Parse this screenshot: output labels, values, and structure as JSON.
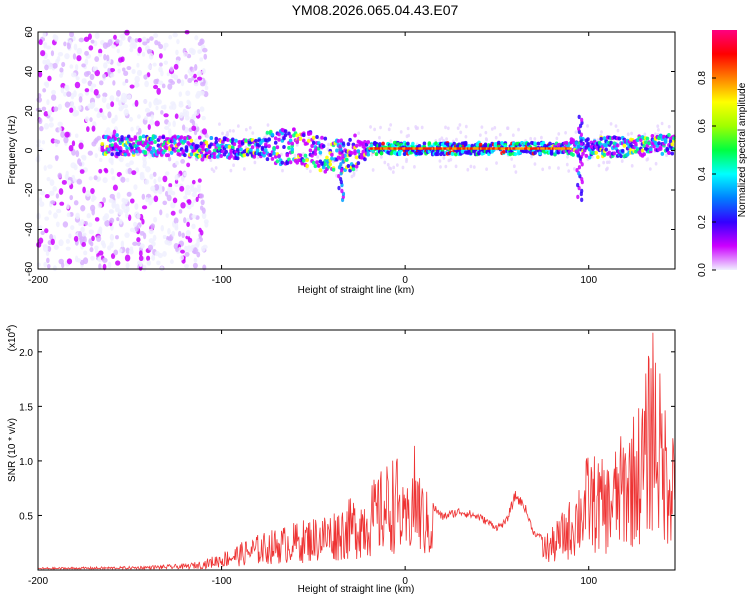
{
  "title": "YM08.2026.065.04.43.E07",
  "chart_data": [
    {
      "type": "heatmap",
      "name": "spectrogram",
      "xlabel": "Height of straight line (km)",
      "ylabel": "Frequency (Hz)",
      "xlim": [
        -200,
        147
      ],
      "ylim": [
        -60,
        60
      ],
      "xticks": [
        -200,
        -100,
        0,
        100
      ],
      "yticks": [
        -60,
        -40,
        -20,
        0,
        20,
        40,
        60
      ],
      "colorbar": {
        "label": "Normalized spectral amplitude",
        "range": [
          0,
          1
        ],
        "ticks": [
          0.0,
          0.2,
          0.4,
          0.6,
          0.8
        ],
        "colormap": [
          "#f0f0ff",
          "#cc00ff",
          "#3300ff",
          "#0080ff",
          "#00ffff",
          "#00ff40",
          "#a0ff00",
          "#ffff00",
          "#ff8000",
          "#ff0000",
          "#ff0080"
        ]
      },
      "ridge": {
        "description_points": [
          [
            -160,
            3
          ],
          [
            -120,
            2
          ],
          [
            -90,
            1
          ],
          [
            -70,
            1
          ],
          [
            -60,
            3
          ],
          [
            -50,
            0
          ],
          [
            -40,
            -3
          ],
          [
            -30,
            -2
          ],
          [
            -20,
            1
          ],
          [
            0,
            1
          ],
          [
            50,
            1
          ],
          [
            90,
            1
          ],
          [
            120,
            2
          ],
          [
            147,
            3
          ]
        ],
        "features": [
          {
            "x": 95,
            "f_range": [
              -25,
              18
            ],
            "note": "vertical streak"
          },
          {
            "x": -35,
            "f_range": [
              -25,
              5
            ],
            "note": "lower spur"
          }
        ]
      }
    },
    {
      "type": "line",
      "name": "snr",
      "xlabel": "Height of straight line (km)",
      "ylabel": "SNR (10 * v/v)",
      "multiplier_label": "(x10",
      "multiplier_exponent": "4",
      "multiplier_close": ")",
      "xlim": [
        -200,
        147
      ],
      "ylim": [
        0,
        2.2
      ],
      "xticks": [
        -200,
        -100,
        0,
        100
      ],
      "yticks": [
        0.5,
        1.0,
        1.5,
        2.0
      ],
      "color": "#ee3333",
      "envelope_points": [
        [
          -200,
          0.02
        ],
        [
          -150,
          0.03
        ],
        [
          -120,
          0.05
        ],
        [
          -110,
          0.08
        ],
        [
          -100,
          0.15
        ],
        [
          -80,
          0.3
        ],
        [
          -60,
          0.4
        ],
        [
          -40,
          0.5
        ],
        [
          -20,
          0.7
        ],
        [
          -10,
          0.9
        ],
        [
          -5,
          1.0
        ],
        [
          0,
          0.6
        ],
        [
          5,
          1.05
        ],
        [
          10,
          0.7
        ],
        [
          20,
          0.5
        ],
        [
          30,
          0.55
        ],
        [
          40,
          0.5
        ],
        [
          50,
          0.4
        ],
        [
          55,
          0.45
        ],
        [
          60,
          0.7
        ],
        [
          65,
          0.6
        ],
        [
          70,
          0.35
        ],
        [
          75,
          0.3
        ],
        [
          80,
          0.35
        ],
        [
          90,
          0.6
        ],
        [
          100,
          1.0
        ],
        [
          110,
          0.9
        ],
        [
          120,
          1.2
        ],
        [
          130,
          1.5
        ],
        [
          135,
          2.2
        ],
        [
          140,
          1.5
        ],
        [
          147,
          1.3
        ]
      ]
    }
  ]
}
